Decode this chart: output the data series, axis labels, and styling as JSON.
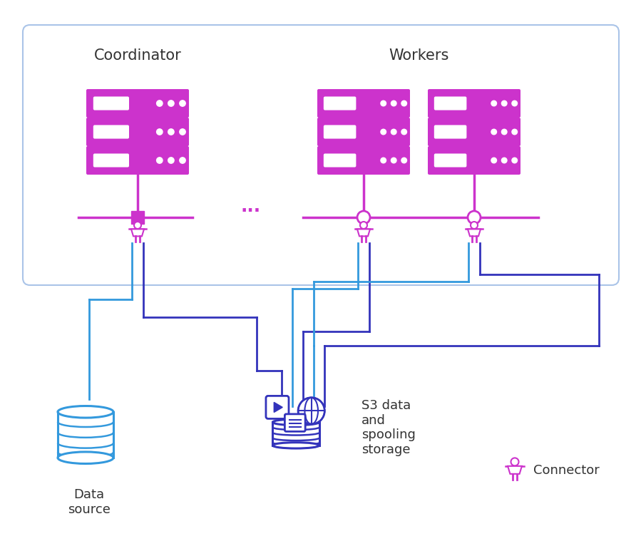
{
  "bg_color": "#ffffff",
  "box_color": "#aac4e8",
  "magenta": "#cc33cc",
  "blue": "#3399dd",
  "dark_blue": "#3333bb",
  "label_coordinator": "Coordinator",
  "label_workers": "Workers",
  "dots_text": "...",
  "label_data_source": "Data\nsource",
  "label_s3": "S3 data\nand\nspooling\nstorage",
  "label_connector": "Connector"
}
